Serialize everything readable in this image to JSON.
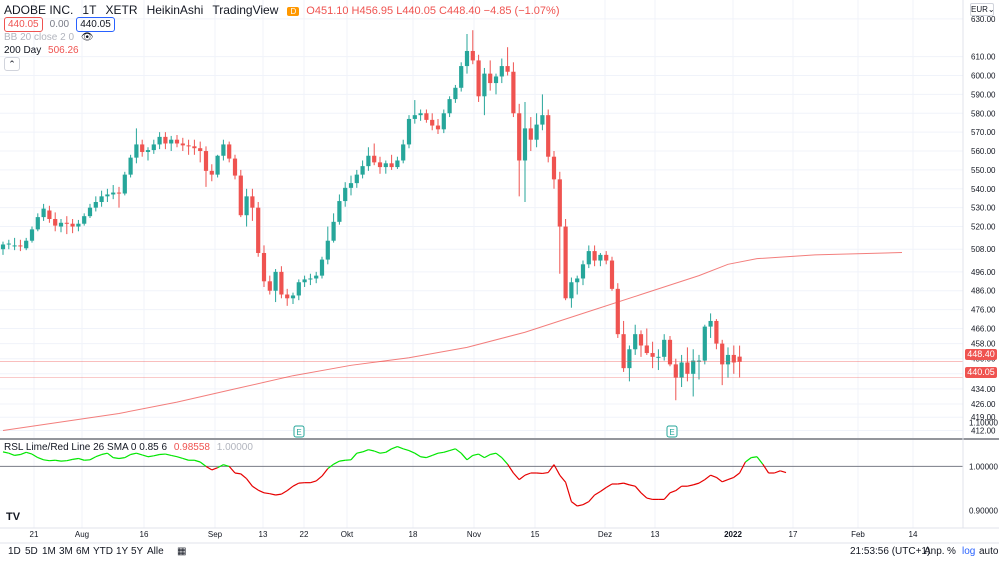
{
  "header": {
    "symbol": "ADOBE INC.",
    "interval": "1T",
    "exchange": "XETR",
    "chart_style": "HeikinAshi",
    "source": "TradingView",
    "d_badge": "D",
    "ohlc": "O451.10 H456.95 L440.05 C448.40 −4.85 (−1.07%)",
    "bid": "440.05",
    "spread": "0.00",
    "ask": "440.05",
    "bb_label": "BB 20 close 2 0",
    "ma_label": "200 Day",
    "ma_value": "506.26",
    "currency_label": "EUR",
    "currency_arrow": "⌄"
  },
  "price_tags": {
    "last": "448.40",
    "bid": "440.05"
  },
  "rsl_legend": {
    "label": "RSL Lime/Red Line 26 SMA 0 0.85 6",
    "value": "0.98558",
    "ref": "1.00000"
  },
  "toolbar": {
    "ranges": [
      "1D",
      "5D",
      "1M",
      "3M",
      "6M",
      "YTD",
      "1Y",
      "5Y",
      "Alle"
    ],
    "time": "21:53:56 (UTC+1)",
    "adj": "Anp.",
    "percent": "%",
    "log": "log",
    "auto": "auto"
  },
  "colors": {
    "up": "#26a69a",
    "down": "#ef5350",
    "ma": "#ef5350",
    "rsl_up": "#00e600",
    "rsl_down": "#e60000",
    "grid": "#f0f3fa",
    "accent": "#2962ff"
  },
  "chart_data": [
    {
      "type": "candlestick",
      "style": "HeikinAshi",
      "title": "ADOBE INC. · 1T · XETR",
      "ylim": [
        408,
        640
      ],
      "y_ticks": [
        412,
        419,
        426,
        434,
        442,
        450,
        458,
        466,
        476,
        486,
        496,
        508,
        520,
        530,
        540,
        550,
        560,
        570,
        580,
        590,
        600,
        610,
        630
      ],
      "x_ticks": [
        "21",
        "Aug",
        "16",
        "Sep",
        "13",
        "22",
        "Okt",
        "18",
        "Nov",
        "15",
        "Dez",
        "13",
        "2022",
        "17",
        "Feb",
        "14"
      ],
      "earnings_marker_label": "E",
      "grid": true,
      "candles": [
        {
          "o": 508.0,
          "h": 512.0,
          "l": 505.0,
          "c": 510.5
        },
        {
          "o": 510.5,
          "h": 513.0,
          "l": 508.0,
          "c": 511.0
        },
        {
          "o": 510.0,
          "h": 514.0,
          "l": 507.5,
          "c": 510.0
        },
        {
          "o": 510.0,
          "h": 513.0,
          "l": 507.0,
          "c": 509.5
        },
        {
          "o": 508.5,
          "h": 514.0,
          "l": 507.5,
          "c": 512.5
        },
        {
          "o": 512.5,
          "h": 520.0,
          "l": 511.5,
          "c": 518.5
        },
        {
          "o": 518.5,
          "h": 527.0,
          "l": 517.5,
          "c": 525.0
        },
        {
          "o": 525.0,
          "h": 532.0,
          "l": 523.0,
          "c": 529.5
        },
        {
          "o": 528.5,
          "h": 531.0,
          "l": 522.0,
          "c": 524.0
        },
        {
          "o": 524.0,
          "h": 527.5,
          "l": 517.5,
          "c": 520.5
        },
        {
          "o": 520.0,
          "h": 524.0,
          "l": 517.0,
          "c": 522.0
        },
        {
          "o": 522.0,
          "h": 525.5,
          "l": 516.0,
          "c": 521.5
        },
        {
          "o": 521.5,
          "h": 524.0,
          "l": 516.5,
          "c": 520.0
        },
        {
          "o": 520.0,
          "h": 523.5,
          "l": 517.5,
          "c": 521.5
        },
        {
          "o": 521.5,
          "h": 527.0,
          "l": 520.5,
          "c": 525.5
        },
        {
          "o": 525.5,
          "h": 532.0,
          "l": 524.5,
          "c": 530.0
        },
        {
          "o": 530.0,
          "h": 536.0,
          "l": 528.0,
          "c": 533.0
        },
        {
          "o": 533.0,
          "h": 539.0,
          "l": 530.5,
          "c": 536.0
        },
        {
          "o": 536.0,
          "h": 540.0,
          "l": 533.0,
          "c": 537.0
        },
        {
          "o": 537.0,
          "h": 542.0,
          "l": 534.5,
          "c": 538.0
        },
        {
          "o": 538.0,
          "h": 541.0,
          "l": 530.0,
          "c": 537.5
        },
        {
          "o": 537.5,
          "h": 549.0,
          "l": 536.5,
          "c": 547.5
        },
        {
          "o": 547.5,
          "h": 558.0,
          "l": 546.0,
          "c": 556.5
        },
        {
          "o": 556.5,
          "h": 572.0,
          "l": 553.5,
          "c": 563.5
        },
        {
          "o": 563.5,
          "h": 566.0,
          "l": 557.0,
          "c": 559.5
        },
        {
          "o": 559.5,
          "h": 562.0,
          "l": 555.0,
          "c": 560.5
        },
        {
          "o": 560.5,
          "h": 566.0,
          "l": 558.5,
          "c": 563.5
        },
        {
          "o": 563.5,
          "h": 570.0,
          "l": 561.0,
          "c": 567.5
        },
        {
          "o": 567.5,
          "h": 570.0,
          "l": 561.0,
          "c": 564.0
        },
        {
          "o": 564.0,
          "h": 568.0,
          "l": 560.0,
          "c": 566.0
        },
        {
          "o": 566.0,
          "h": 568.5,
          "l": 562.0,
          "c": 564.0
        },
        {
          "o": 564.0,
          "h": 567.0,
          "l": 560.0,
          "c": 563.0
        },
        {
          "o": 563.0,
          "h": 566.0,
          "l": 558.0,
          "c": 562.5
        },
        {
          "o": 562.5,
          "h": 566.0,
          "l": 558.0,
          "c": 561.5
        },
        {
          "o": 561.5,
          "h": 565.0,
          "l": 554.0,
          "c": 560.0
        },
        {
          "o": 560.0,
          "h": 562.5,
          "l": 541.0,
          "c": 549.5
        },
        {
          "o": 549.5,
          "h": 553.0,
          "l": 544.0,
          "c": 547.5
        },
        {
          "o": 547.5,
          "h": 558.0,
          "l": 546.0,
          "c": 557.5
        },
        {
          "o": 557.5,
          "h": 566.0,
          "l": 555.0,
          "c": 563.5
        },
        {
          "o": 563.5,
          "h": 565.0,
          "l": 554.0,
          "c": 556.0
        },
        {
          "o": 556.0,
          "h": 558.0,
          "l": 545.0,
          "c": 547.0
        },
        {
          "o": 547.0,
          "h": 550.0,
          "l": 525.0,
          "c": 526.0
        },
        {
          "o": 526.0,
          "h": 540.0,
          "l": 520.0,
          "c": 536.0
        },
        {
          "o": 536.0,
          "h": 540.0,
          "l": 523.0,
          "c": 530.0
        },
        {
          "o": 530.0,
          "h": 533.0,
          "l": 504.0,
          "c": 506.0
        },
        {
          "o": 506.0,
          "h": 510.0,
          "l": 488.0,
          "c": 491.0
        },
        {
          "o": 491.0,
          "h": 494.0,
          "l": 484.0,
          "c": 486.0
        },
        {
          "o": 486.0,
          "h": 497.5,
          "l": 480.0,
          "c": 496.0
        },
        {
          "o": 496.0,
          "h": 499.0,
          "l": 482.0,
          "c": 484.0
        },
        {
          "o": 484.0,
          "h": 487.0,
          "l": 478.0,
          "c": 482.0
        },
        {
          "o": 482.0,
          "h": 485.0,
          "l": 479.0,
          "c": 483.5
        },
        {
          "o": 483.5,
          "h": 492.0,
          "l": 481.0,
          "c": 490.5
        },
        {
          "o": 490.5,
          "h": 494.0,
          "l": 488.0,
          "c": 492.0
        },
        {
          "o": 492.0,
          "h": 495.0,
          "l": 489.0,
          "c": 492.5
        },
        {
          "o": 492.5,
          "h": 496.0,
          "l": 490.0,
          "c": 494.0
        },
        {
          "o": 494.0,
          "h": 504.0,
          "l": 492.5,
          "c": 502.5
        },
        {
          "o": 502.5,
          "h": 520.0,
          "l": 500.0,
          "c": 512.5
        },
        {
          "o": 512.5,
          "h": 527.0,
          "l": 511.5,
          "c": 522.5
        },
        {
          "o": 522.5,
          "h": 537.0,
          "l": 521.0,
          "c": 533.5
        },
        {
          "o": 533.5,
          "h": 543.5,
          "l": 530.5,
          "c": 540.5
        },
        {
          "o": 540.5,
          "h": 547.0,
          "l": 536.5,
          "c": 543.0
        },
        {
          "o": 543.0,
          "h": 550.0,
          "l": 540.5,
          "c": 547.5
        },
        {
          "o": 547.5,
          "h": 555.0,
          "l": 545.5,
          "c": 552.0
        },
        {
          "o": 552.0,
          "h": 562.0,
          "l": 549.5,
          "c": 557.5
        },
        {
          "o": 557.5,
          "h": 564.0,
          "l": 552.5,
          "c": 554.0
        },
        {
          "o": 554.0,
          "h": 557.0,
          "l": 548.0,
          "c": 551.5
        },
        {
          "o": 551.5,
          "h": 555.0,
          "l": 548.0,
          "c": 553.5
        },
        {
          "o": 553.5,
          "h": 558.0,
          "l": 550.0,
          "c": 551.5
        },
        {
          "o": 551.5,
          "h": 557.0,
          "l": 550.5,
          "c": 555.0
        },
        {
          "o": 555.0,
          "h": 566.0,
          "l": 553.5,
          "c": 563.5
        },
        {
          "o": 563.5,
          "h": 579.0,
          "l": 561.5,
          "c": 577.0
        },
        {
          "o": 577.0,
          "h": 587.0,
          "l": 574.5,
          "c": 579.0
        },
        {
          "o": 579.0,
          "h": 582.0,
          "l": 576.0,
          "c": 580.0
        },
        {
          "o": 580.0,
          "h": 582.0,
          "l": 575.0,
          "c": 576.5
        },
        {
          "o": 576.5,
          "h": 580.0,
          "l": 571.0,
          "c": 573.5
        },
        {
          "o": 573.5,
          "h": 577.0,
          "l": 569.0,
          "c": 571.5
        },
        {
          "o": 571.5,
          "h": 582.0,
          "l": 569.5,
          "c": 580.0
        },
        {
          "o": 580.0,
          "h": 589.0,
          "l": 578.0,
          "c": 587.5
        },
        {
          "o": 587.5,
          "h": 595.0,
          "l": 585.5,
          "c": 593.5
        },
        {
          "o": 593.5,
          "h": 607.0,
          "l": 591.5,
          "c": 605.0
        },
        {
          "o": 605.0,
          "h": 622.0,
          "l": 601.0,
          "c": 613.0
        },
        {
          "o": 613.0,
          "h": 624.0,
          "l": 606.0,
          "c": 608.0
        },
        {
          "o": 608.0,
          "h": 611.0,
          "l": 586.0,
          "c": 589.0
        },
        {
          "o": 589.0,
          "h": 604.0,
          "l": 579.0,
          "c": 601.0
        },
        {
          "o": 601.0,
          "h": 608.0,
          "l": 592.0,
          "c": 596.0
        },
        {
          "o": 596.0,
          "h": 601.0,
          "l": 590.0,
          "c": 599.5
        },
        {
          "o": 599.5,
          "h": 609.0,
          "l": 596.0,
          "c": 605.0
        },
        {
          "o": 605.0,
          "h": 615.0,
          "l": 600.0,
          "c": 602.0
        },
        {
          "o": 602.0,
          "h": 607.0,
          "l": 578.0,
          "c": 580.0
        },
        {
          "o": 580.0,
          "h": 585.0,
          "l": 536.0,
          "c": 555.0
        },
        {
          "o": 555.0,
          "h": 586.0,
          "l": 533.0,
          "c": 572.0
        },
        {
          "o": 572.0,
          "h": 578.0,
          "l": 560.0,
          "c": 566.0
        },
        {
          "o": 566.0,
          "h": 580.0,
          "l": 562.0,
          "c": 574.0
        },
        {
          "o": 574.0,
          "h": 590.0,
          "l": 571.0,
          "c": 579.0
        },
        {
          "o": 579.0,
          "h": 582.0,
          "l": 554.0,
          "c": 557.0
        },
        {
          "o": 557.0,
          "h": 560.0,
          "l": 540.0,
          "c": 545.0
        },
        {
          "o": 545.0,
          "h": 549.0,
          "l": 495.0,
          "c": 520.0
        },
        {
          "o": 520.0,
          "h": 524.0,
          "l": 481.0,
          "c": 482.0
        },
        {
          "o": 482.0,
          "h": 493.0,
          "l": 477.0,
          "c": 490.5
        },
        {
          "o": 490.5,
          "h": 494.0,
          "l": 484.0,
          "c": 492.5
        },
        {
          "o": 492.5,
          "h": 502.0,
          "l": 489.0,
          "c": 500.0
        },
        {
          "o": 500.0,
          "h": 510.0,
          "l": 498.0,
          "c": 507.0
        },
        {
          "o": 507.0,
          "h": 510.0,
          "l": 499.0,
          "c": 502.0
        },
        {
          "o": 502.0,
          "h": 506.0,
          "l": 499.0,
          "c": 505.0
        },
        {
          "o": 505.0,
          "h": 507.0,
          "l": 500.0,
          "c": 502.0
        },
        {
          "o": 502.0,
          "h": 504.0,
          "l": 486.0,
          "c": 487.0
        },
        {
          "o": 487.0,
          "h": 490.0,
          "l": 461.0,
          "c": 463.0
        },
        {
          "o": 463.0,
          "h": 470.0,
          "l": 443.0,
          "c": 445.0
        },
        {
          "o": 445.0,
          "h": 457.0,
          "l": 438.0,
          "c": 455.0
        },
        {
          "o": 455.0,
          "h": 468.0,
          "l": 452.0,
          "c": 463.0
        },
        {
          "o": 463.0,
          "h": 465.0,
          "l": 451.0,
          "c": 457.0
        },
        {
          "o": 457.0,
          "h": 466.0,
          "l": 452.0,
          "c": 453.0
        },
        {
          "o": 453.0,
          "h": 459.0,
          "l": 445.0,
          "c": 451.0
        },
        {
          "o": 451.0,
          "h": 455.0,
          "l": 444.0,
          "c": 451.0
        },
        {
          "o": 451.0,
          "h": 463.0,
          "l": 449.0,
          "c": 460.0
        },
        {
          "o": 460.0,
          "h": 462.0,
          "l": 446.0,
          "c": 447.0
        },
        {
          "o": 447.0,
          "h": 450.0,
          "l": 428.0,
          "c": 440.0
        },
        {
          "o": 440.0,
          "h": 452.0,
          "l": 435.0,
          "c": 448.0
        },
        {
          "o": 448.0,
          "h": 456.0,
          "l": 438.0,
          "c": 442.0
        },
        {
          "o": 442.0,
          "h": 455.0,
          "l": 430.0,
          "c": 449.0
        },
        {
          "o": 449.0,
          "h": 452.0,
          "l": 439.0,
          "c": 449.0
        },
        {
          "o": 449.0,
          "h": 468.0,
          "l": 447.0,
          "c": 467.0
        },
        {
          "o": 467.0,
          "h": 474.0,
          "l": 461.0,
          "c": 470.0
        },
        {
          "o": 470.0,
          "h": 471.0,
          "l": 455.0,
          "c": 458.0
        },
        {
          "o": 458.0,
          "h": 460.0,
          "l": 436.0,
          "c": 447.0
        },
        {
          "o": 447.0,
          "h": 456.0,
          "l": 440.0,
          "c": 452.0
        },
        {
          "o": 452.0,
          "h": 457.0,
          "l": 442.0,
          "c": 448.0
        },
        {
          "o": 451.1,
          "h": 456.95,
          "l": 440.05,
          "c": 448.4
        }
      ],
      "moving_average": {
        "name": "200 Day",
        "values": [
          {
            "i": 0,
            "v": 412.0
          },
          {
            "i": 10,
            "v": 416.5
          },
          {
            "i": 20,
            "v": 421.0
          },
          {
            "i": 30,
            "v": 427.0
          },
          {
            "i": 40,
            "v": 434.0
          },
          {
            "i": 50,
            "v": 441.0
          },
          {
            "i": 60,
            "v": 446.5
          },
          {
            "i": 70,
            "v": 450.5
          },
          {
            "i": 80,
            "v": 456.0
          },
          {
            "i": 90,
            "v": 464.0
          },
          {
            "i": 100,
            "v": 474.0
          },
          {
            "i": 110,
            "v": 484.0
          },
          {
            "i": 120,
            "v": 494.0
          },
          {
            "i": 125,
            "v": 500.0
          },
          {
            "i": 130,
            "v": 503.0
          },
          {
            "i": 140,
            "v": 505.0
          },
          {
            "i": 155,
            "v": 506.26
          }
        ]
      },
      "horizontal_lines": [
        448.4,
        440.05
      ]
    },
    {
      "type": "line",
      "title": "RSL Lime/Red Line 26 SMA 0 0.85 6",
      "ylim": [
        0.86,
        1.06
      ],
      "y_ticks": [
        0.9,
        1.0,
        1.1
      ],
      "reference_line": 1.0,
      "values": [
        1.033,
        1.03,
        1.025,
        1.027,
        1.032,
        1.028,
        1.02,
        1.015,
        1.013,
        1.014,
        1.012,
        1.013,
        1.016,
        1.018,
        1.014,
        1.015,
        1.022,
        1.027,
        1.03,
        1.02,
        1.018,
        1.02,
        1.027,
        1.03,
        1.026,
        1.022,
        1.024,
        1.027,
        1.028,
        1.025,
        1.022,
        1.018,
        1.014,
        1.014,
        1.01,
        1.0,
        0.992,
        0.997,
        1.004,
        1.0,
        0.985,
        0.983,
        0.972,
        0.955,
        0.946,
        0.94,
        0.938,
        0.935,
        0.937,
        0.945,
        0.955,
        0.962,
        0.963,
        0.963,
        0.967,
        0.978,
        0.995,
        1.005,
        1.012,
        1.014,
        1.015,
        1.03,
        1.033,
        1.038,
        1.035,
        1.03,
        1.032,
        1.04,
        1.045,
        1.04,
        1.036,
        1.03,
        1.022,
        1.02,
        1.025,
        1.03,
        1.032,
        1.036,
        1.04,
        1.03,
        1.015,
        1.025,
        1.028,
        1.02,
        1.027,
        1.03,
        1.02,
        1.005,
        0.985,
        0.97,
        0.98,
        0.985,
        0.985,
        0.984,
        0.986,
        1.004,
        0.98,
        0.964,
        0.92,
        0.91,
        0.913,
        0.92,
        0.935,
        0.943,
        0.952,
        0.96,
        0.96,
        0.962,
        0.958,
        0.955,
        0.94,
        0.928,
        0.925,
        0.925,
        0.925,
        0.94,
        0.945,
        0.955,
        0.955,
        0.958,
        0.962,
        0.97,
        0.98,
        0.975,
        0.965,
        0.97,
        0.975,
        0.985,
        1.01,
        1.02,
        1.022,
        1.005,
        0.985,
        0.985,
        0.99,
        0.986
      ]
    }
  ]
}
